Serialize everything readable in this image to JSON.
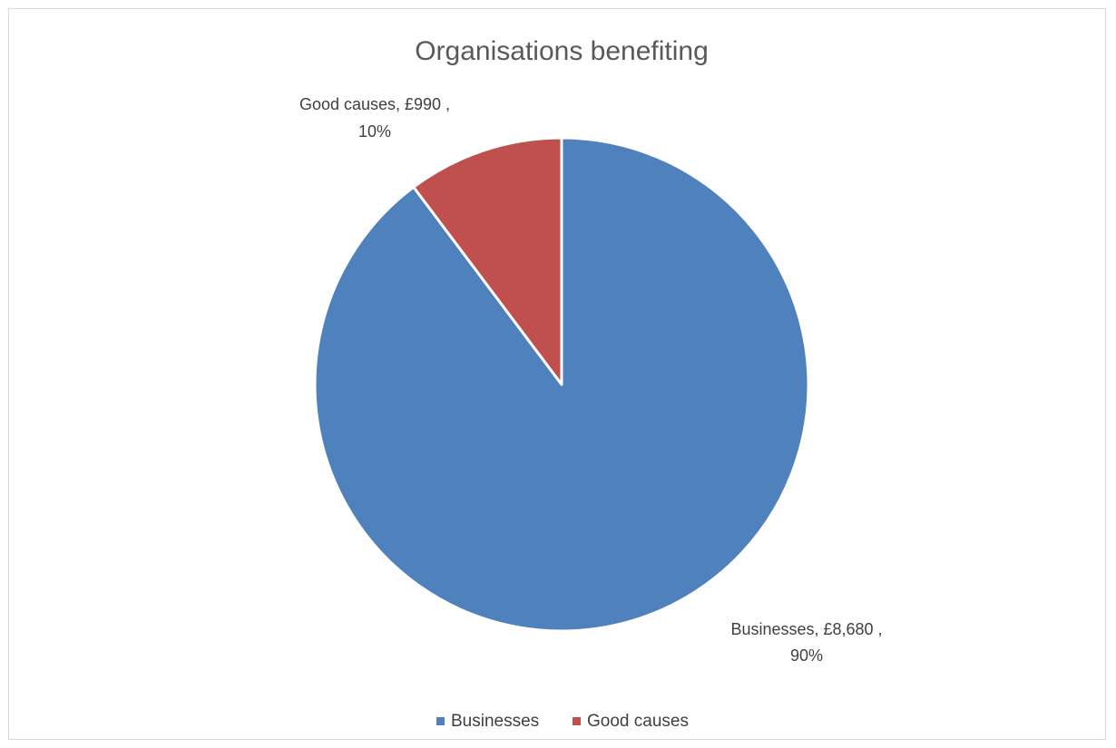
{
  "chart_data": {
    "type": "pie",
    "title": "Organisations benefiting",
    "categories": [
      "Businesses",
      "Good causes"
    ],
    "values": [
      8680,
      990
    ],
    "percentages": [
      90,
      10
    ],
    "data_labels": [
      {
        "line1": "Businesses, £8,680 ,",
        "line2": "90%"
      },
      {
        "line1": "Good causes, £990 ,",
        "line2": "10%"
      }
    ],
    "colors": [
      "#4f81bd",
      "#c0504d"
    ],
    "legend_placement": "bottom",
    "legend": [
      {
        "label": "Businesses"
      },
      {
        "label": "Good causes"
      }
    ]
  }
}
